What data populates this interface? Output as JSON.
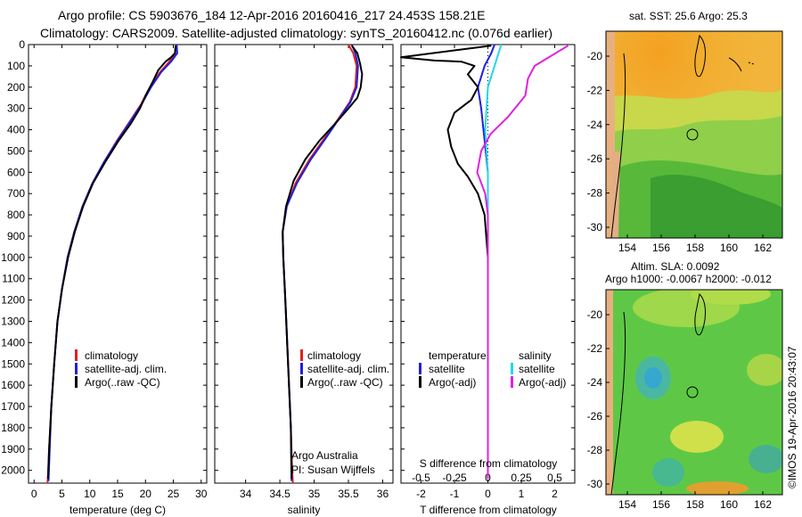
{
  "header": {
    "line1": "Argo profile: CS 5903676_184 12-Apr-2016 20160416_217 24.453S 158.21E",
    "line2": "Climatology: CARS2009. Satellite-adjusted climatology: synTS_20160412.nc (0.076d earlier)"
  },
  "depth_ticks": [
    0,
    100,
    200,
    300,
    400,
    500,
    600,
    700,
    800,
    900,
    1000,
    1100,
    1200,
    1300,
    1400,
    1500,
    1600,
    1700,
    1800,
    1900,
    2000
  ],
  "chart_data": [
    {
      "id": "temperature",
      "type": "line",
      "xlabel": "temperature (deg C)",
      "xlim": [
        -1,
        31
      ],
      "xticks": [
        0,
        5,
        10,
        15,
        20,
        25,
        30
      ],
      "ylim": [
        0,
        2060
      ],
      "y_reversed": true,
      "legend": [
        "climatology",
        "satellite-adj. clim.",
        "Argo(..raw -QC)"
      ],
      "legend_colors": [
        "#e02020",
        "#1f1fe0",
        "#000000"
      ],
      "series": [
        {
          "name": "climatology",
          "color": "#e02020",
          "points": [
            [
              25.5,
              0
            ],
            [
              25.3,
              40
            ],
            [
              24.3,
              80
            ],
            [
              22.6,
              130
            ],
            [
              20.8,
              200
            ],
            [
              19.2,
              280
            ],
            [
              17.2,
              360
            ],
            [
              14.9,
              450
            ],
            [
              12.6,
              550
            ],
            [
              10.5,
              650
            ],
            [
              8.7,
              760
            ],
            [
              7.2,
              880
            ],
            [
              6.0,
              1000
            ],
            [
              5.0,
              1150
            ],
            [
              4.2,
              1300
            ],
            [
              3.6,
              1500
            ],
            [
              3.1,
              1700
            ],
            [
              2.7,
              1900
            ],
            [
              2.5,
              2020
            ],
            [
              2.4,
              2060
            ]
          ]
        },
        {
          "name": "satellite-adj. clim.",
          "color": "#1f1fe0",
          "points": [
            [
              25.6,
              0
            ],
            [
              25.7,
              40
            ],
            [
              24.6,
              80
            ],
            [
              22.8,
              130
            ],
            [
              21.0,
              200
            ],
            [
              19.3,
              280
            ],
            [
              17.3,
              360
            ],
            [
              15.0,
              450
            ],
            [
              12.6,
              550
            ],
            [
              10.5,
              650
            ],
            [
              8.7,
              760
            ],
            [
              7.2,
              880
            ],
            [
              6.0,
              1000
            ],
            [
              5.0,
              1150
            ],
            [
              4.2,
              1300
            ],
            [
              3.6,
              1500
            ],
            [
              3.1,
              1700
            ],
            [
              2.8,
              1900
            ],
            [
              2.6,
              2050
            ]
          ]
        },
        {
          "name": "Argo(..raw -QC)",
          "color": "#000000",
          "points": [
            [
              25.4,
              5
            ],
            [
              25.3,
              40
            ],
            [
              24.6,
              60
            ],
            [
              23.6,
              80
            ],
            [
              22.3,
              120
            ],
            [
              21.2,
              180
            ],
            [
              20.0,
              240
            ],
            [
              19.0,
              300
            ],
            [
              17.4,
              370
            ],
            [
              15.2,
              450
            ],
            [
              12.8,
              550
            ],
            [
              10.6,
              650
            ],
            [
              8.8,
              760
            ],
            [
              7.3,
              880
            ],
            [
              6.1,
              1000
            ],
            [
              5.0,
              1150
            ],
            [
              4.2,
              1300
            ],
            [
              3.6,
              1500
            ],
            [
              3.1,
              1700
            ],
            [
              2.7,
              1900
            ],
            [
              2.5,
              2040
            ]
          ]
        }
      ]
    },
    {
      "id": "salinity",
      "type": "line",
      "xlabel": "salinity",
      "xlim": [
        33.55,
        36.15
      ],
      "xticks": [
        34,
        34.5,
        35,
        35.5,
        36
      ],
      "xtick_labels": [
        "34",
        "34.5",
        "35",
        "35.5",
        "36"
      ],
      "ylim": [
        0,
        2060
      ],
      "y_reversed": true,
      "legend": [
        "climatology",
        "satellite-adj. clim.",
        "Argo(..raw -QC)"
      ],
      "legend_colors": [
        "#e02020",
        "#1f1fe0",
        "#000000"
      ],
      "series": [
        {
          "name": "climatology",
          "color": "#e02020",
          "points": [
            [
              35.5,
              0
            ],
            [
              35.57,
              40
            ],
            [
              35.62,
              100
            ],
            [
              35.6,
              200
            ],
            [
              35.52,
              270
            ],
            [
              35.35,
              350
            ],
            [
              35.15,
              440
            ],
            [
              34.93,
              540
            ],
            [
              34.73,
              650
            ],
            [
              34.6,
              760
            ],
            [
              34.54,
              880
            ],
            [
              34.55,
              1000
            ],
            [
              34.58,
              1200
            ],
            [
              34.62,
              1500
            ],
            [
              34.66,
              1800
            ],
            [
              34.68,
              2000
            ],
            [
              34.69,
              2060
            ]
          ]
        },
        {
          "name": "satellite-adj. clim.",
          "color": "#1f1fe0",
          "points": [
            [
              35.55,
              0
            ],
            [
              35.6,
              40
            ],
            [
              35.64,
              100
            ],
            [
              35.62,
              200
            ],
            [
              35.53,
              270
            ],
            [
              35.36,
              350
            ],
            [
              35.17,
              440
            ],
            [
              34.95,
              540
            ],
            [
              34.75,
              650
            ],
            [
              34.6,
              760
            ],
            [
              34.54,
              880
            ],
            [
              34.55,
              1000
            ],
            [
              34.58,
              1200
            ],
            [
              34.62,
              1500
            ],
            [
              34.66,
              1800
            ],
            [
              34.67,
              2050
            ]
          ]
        },
        {
          "name": "Argo(..raw -QC)",
          "color": "#000000",
          "points": [
            [
              35.55,
              5
            ],
            [
              35.63,
              40
            ],
            [
              35.67,
              90
            ],
            [
              35.7,
              140
            ],
            [
              35.68,
              200
            ],
            [
              35.63,
              250
            ],
            [
              35.5,
              300
            ],
            [
              35.31,
              370
            ],
            [
              35.08,
              450
            ],
            [
              34.87,
              540
            ],
            [
              34.7,
              640
            ],
            [
              34.59,
              760
            ],
            [
              34.54,
              880
            ],
            [
              34.55,
              1000
            ],
            [
              34.58,
              1200
            ],
            [
              34.62,
              1500
            ],
            [
              34.66,
              1800
            ],
            [
              34.67,
              2040
            ]
          ]
        }
      ],
      "credit": [
        "Argo Australia",
        "PI: Susan Wijffels"
      ]
    },
    {
      "id": "differences",
      "type": "line",
      "xlabel": "T difference from climatology",
      "xlabel_top": "S difference from climatology",
      "xlim": [
        -2.6,
        2.6
      ],
      "xticks": [
        -2,
        -1,
        0,
        1,
        2
      ],
      "s_ticks": [
        -0.5,
        -0.25,
        0,
        0.25,
        0.5
      ],
      "ylim": [
        0,
        2060
      ],
      "y_reversed": true,
      "legend_left_title": "temperature",
      "legend_right_title": "salinity",
      "legend_left": [
        "satellite",
        "Argo(-adj)"
      ],
      "legend_left_colors": [
        "#1f1fe0",
        "#000000"
      ],
      "legend_right": [
        "satellite",
        "Argo(-adj)"
      ],
      "legend_right_colors": [
        "#22d8e8",
        "#e020e0"
      ],
      "series": [
        {
          "name": "temperature satellite",
          "color": "#1f1fe0",
          "points": [
            [
              0.2,
              0
            ],
            [
              0.1,
              40
            ],
            [
              -0.1,
              100
            ],
            [
              -0.3,
              200
            ],
            [
              -0.2,
              300
            ],
            [
              -0.1,
              450
            ],
            [
              0,
              600
            ],
            [
              0,
              800
            ],
            [
              0,
              2040
            ]
          ]
        },
        {
          "name": "temperature Argo(-adj)",
          "color": "#000000",
          "points": [
            [
              0.1,
              5
            ],
            [
              -2.6,
              60
            ],
            [
              -1.6,
              75
            ],
            [
              -0.8,
              80
            ],
            [
              -0.4,
              100
            ],
            [
              -0.6,
              140
            ],
            [
              -0.3,
              200
            ],
            [
              -0.5,
              260
            ],
            [
              -1.0,
              320
            ],
            [
              -1.2,
              400
            ],
            [
              -1.1,
              480
            ],
            [
              -0.9,
              560
            ],
            [
              -0.6,
              620
            ],
            [
              -0.3,
              700
            ],
            [
              -0.1,
              800
            ],
            [
              0,
              1000
            ],
            [
              0,
              1200
            ],
            [
              0,
              2040
            ]
          ]
        },
        {
          "name": "salinity satellite",
          "color": "#22d8e8",
          "points": [
            [
              0.1,
              0
            ],
            [
              0.08,
              40
            ],
            [
              0,
              200
            ],
            [
              -0.02,
              400
            ],
            [
              0,
              600
            ],
            [
              0,
              2040
            ]
          ]
        },
        {
          "name": "salinity Argo(-adj)",
          "color": "#e020e0",
          "points": [
            [
              0.6,
              5
            ],
            [
              0.35,
              100
            ],
            [
              0.3,
              160
            ],
            [
              0.28,
              240
            ],
            [
              0.15,
              340
            ],
            [
              0.02,
              420
            ],
            [
              -0.05,
              500
            ],
            [
              -0.08,
              600
            ],
            [
              -0.02,
              700
            ],
            [
              0,
              800
            ],
            [
              0,
              2040
            ]
          ]
        }
      ]
    }
  ],
  "maps": [
    {
      "id": "sst",
      "title": "sat. SST: 25.6  Argo: 25.3",
      "yticks": [
        "-20",
        "-22",
        "-24",
        "-26",
        "-28",
        "-30"
      ],
      "xticks": [
        "154",
        "156",
        "158",
        "160",
        "162"
      ]
    },
    {
      "id": "sla",
      "title_line1": "Altim. SLA: 0.0092",
      "title_line2": "Argo h1000: -0.0067 h2000: -0.012",
      "yticks": [
        "-20",
        "-22",
        "-24",
        "-26",
        "-28",
        "-30"
      ],
      "xticks": [
        "154",
        "156",
        "158",
        "160",
        "162"
      ]
    }
  ],
  "stamp": "©IMOS 19-Apr-2016 20:43:07"
}
